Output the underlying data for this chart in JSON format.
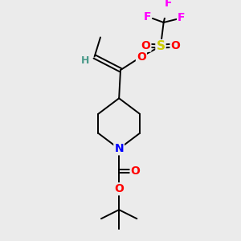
{
  "bg_color": "#ebebeb",
  "atom_colors": {
    "C": "#000000",
    "H": "#4a9a8a",
    "N": "#0000ff",
    "O": "#ff0000",
    "S": "#cccc00",
    "F": "#ff00ff"
  },
  "figsize": [
    3.0,
    3.0
  ],
  "dpi": 100
}
